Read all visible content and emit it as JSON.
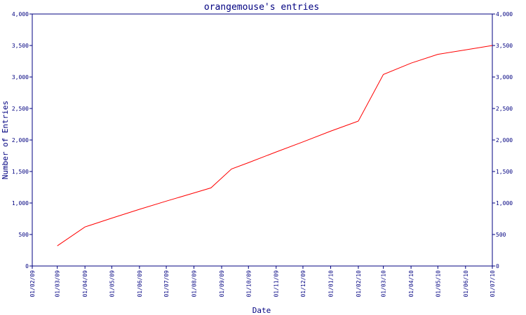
{
  "chart_data": {
    "type": "line",
    "title": "orangemouse's entries",
    "xlabel": "Date",
    "ylabel": "Number of Entries",
    "x_ticks": [
      "01/02/09",
      "01/03/09",
      "01/04/09",
      "01/05/09",
      "01/06/09",
      "01/07/09",
      "01/08/09",
      "01/09/09",
      "01/10/09",
      "01/11/09",
      "01/12/09",
      "01/01/10",
      "01/02/10",
      "01/03/10",
      "01/04/10",
      "01/05/10",
      "01/06/10",
      "01/07/10"
    ],
    "y_ticks": [
      "0",
      "500",
      "1,000",
      "1,500",
      "2,000",
      "2,500",
      "3,000",
      "3,500",
      "4,000"
    ],
    "ylim": [
      0,
      4000
    ],
    "grid": false,
    "series": [
      {
        "color": "#ff0000",
        "points": [
          {
            "x": "2009-03-01",
            "y": 320
          },
          {
            "x": "2009-04-01",
            "y": 620
          },
          {
            "x": "2009-05-01",
            "y": 760
          },
          {
            "x": "2009-06-01",
            "y": 900
          },
          {
            "x": "2009-07-01",
            "y": 1030
          },
          {
            "x": "2009-08-01",
            "y": 1160
          },
          {
            "x": "2009-08-20",
            "y": 1240
          },
          {
            "x": "2009-09-12",
            "y": 1540
          },
          {
            "x": "2009-10-01",
            "y": 1640
          },
          {
            "x": "2009-11-01",
            "y": 1810
          },
          {
            "x": "2009-12-01",
            "y": 1970
          },
          {
            "x": "2010-01-01",
            "y": 2140
          },
          {
            "x": "2010-02-01",
            "y": 2300
          },
          {
            "x": "2010-03-01",
            "y": 3040
          },
          {
            "x": "2010-04-01",
            "y": 3220
          },
          {
            "x": "2010-05-01",
            "y": 3360
          },
          {
            "x": "2010-06-01",
            "y": 3430
          },
          {
            "x": "2010-07-01",
            "y": 3500
          }
        ]
      }
    ]
  }
}
